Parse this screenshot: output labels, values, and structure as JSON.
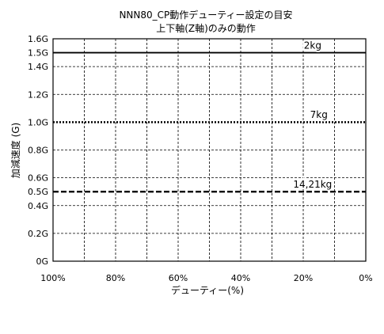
{
  "chart_data": {
    "type": "line",
    "title": "NNN80_CP動作デューティー設定の目安",
    "subtitle": "上下軸(Z軸)のみの動作",
    "xlabel": "デューティー(%)",
    "ylabel": "加減速度 (G)",
    "x_reversed": true,
    "xlim": [
      100,
      0
    ],
    "ylim": [
      0,
      1.6
    ],
    "x_ticks": [
      {
        "value": 100,
        "label": "100%"
      },
      {
        "value": 80,
        "label": "80%"
      },
      {
        "value": 60,
        "label": "60%"
      },
      {
        "value": 40,
        "label": "40%"
      },
      {
        "value": 20,
        "label": "20%"
      },
      {
        "value": 0,
        "label": "0%"
      }
    ],
    "y_ticks": [
      {
        "value": 0,
        "label": "0G"
      },
      {
        "value": 0.2,
        "label": "0.2G"
      },
      {
        "value": 0.4,
        "label": "0.4G"
      },
      {
        "value": 0.5,
        "label": "0.5G"
      },
      {
        "value": 0.6,
        "label": "0.6G"
      },
      {
        "value": 0.8,
        "label": "0.8G"
      },
      {
        "value": 1.0,
        "label": "1.0G"
      },
      {
        "value": 1.2,
        "label": "1.2G"
      },
      {
        "value": 1.4,
        "label": "1.4G"
      },
      {
        "value": 1.5,
        "label": "1.5G"
      },
      {
        "value": 1.6,
        "label": "1.6G"
      }
    ],
    "vertical_grid": [
      100,
      90,
      80,
      70,
      60,
      50,
      40,
      30,
      20,
      10,
      0
    ],
    "horizontal_grid": [
      0.2,
      0.4,
      0.6,
      0.8,
      1.2,
      1.4
    ],
    "grid": true,
    "grid_style": "dashed",
    "series": [
      {
        "name": "2kg",
        "x": [
          100,
          0
        ],
        "y": [
          1.5,
          1.5
        ],
        "style": "solid",
        "label_x": 17,
        "label_y": 1.53
      },
      {
        "name": "7kg",
        "x": [
          100,
          0
        ],
        "y": [
          1.0,
          1.0
        ],
        "style": "dotted",
        "label_x": 15,
        "label_y": 1.03
      },
      {
        "name": "14,21kg",
        "x": [
          100,
          0
        ],
        "y": [
          0.5,
          0.5
        ],
        "style": "dashed",
        "label_x": 17,
        "label_y": 0.53
      }
    ],
    "colors": {
      "line": "#000000",
      "grid": "#000000",
      "background": "#ffffff"
    }
  }
}
